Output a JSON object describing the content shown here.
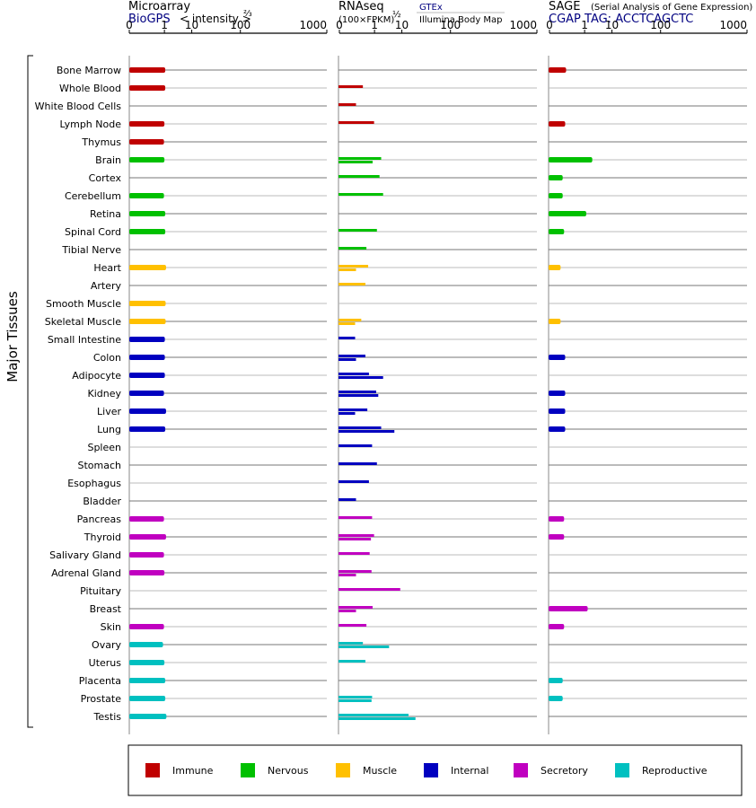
{
  "panels": {
    "microarray": {
      "title": "Microarray",
      "source": "BioGPS",
      "units": "< intensity >",
      "units_exp": "⅔"
    },
    "rnaseq": {
      "title": "RNAseq",
      "units": "(100×FPKM)",
      "units_exp": "½",
      "source1": "GTEx",
      "source2": "Illumina Body Map"
    },
    "sage": {
      "title": "SAGE",
      "subtitle": "(Serial Analysis of Gene Expression)",
      "source": "CGAP TAG: ACCTCAGCTC"
    }
  },
  "axis_ticks": [
    "0",
    "1",
    "10",
    "100",
    "1000"
  ],
  "y_group_label": "Major Tissues",
  "colors": {
    "Immune": "#c00000",
    "Nervous": "#00c000",
    "Muscle": "#ffc000",
    "Internal": "#0000c0",
    "Secretory": "#c000c0",
    "Reproductive": "#00c0c0"
  },
  "legend": [
    "Immune",
    "Nervous",
    "Muscle",
    "Internal",
    "Secretory",
    "Reproductive"
  ],
  "chart_data": [
    {
      "type": "bar",
      "title": "Microarray",
      "xlabel": "< intensity >⅔",
      "xlim": [
        0,
        1000
      ],
      "categories": [
        "Bone Marrow",
        "Whole Blood",
        "White Blood Cells",
        "Lymph Node",
        "Thymus",
        "Brain",
        "Cortex",
        "Cerebellum",
        "Retina",
        "Spinal Cord",
        "Tibial Nerve",
        "Heart",
        "Artery",
        "Smooth Muscle",
        "Skeletal Muscle",
        "Small Intestine",
        "Colon",
        "Adipocyte",
        "Kidney",
        "Liver",
        "Lung",
        "Spleen",
        "Stomach",
        "Esophagus",
        "Bladder",
        "Pancreas",
        "Thyroid",
        "Salivary Gland",
        "Adrenal Gland",
        "Pituitary",
        "Breast",
        "Skin",
        "Ovary",
        "Uterus",
        "Placenta",
        "Prostate",
        "Testis"
      ],
      "groups": [
        "Immune",
        "Immune",
        "Immune",
        "Immune",
        "Immune",
        "Nervous",
        "Nervous",
        "Nervous",
        "Nervous",
        "Nervous",
        "Nervous",
        "Muscle",
        "Muscle",
        "Muscle",
        "Muscle",
        "Internal",
        "Internal",
        "Internal",
        "Internal",
        "Internal",
        "Internal",
        "Internal",
        "Internal",
        "Internal",
        "Internal",
        "Secretory",
        "Secretory",
        "Secretory",
        "Secretory",
        "Secretory",
        "Secretory",
        "Secretory",
        "Reproductive",
        "Reproductive",
        "Reproductive",
        "Reproductive",
        "Reproductive"
      ],
      "values": [
        1.1,
        1.1,
        null,
        1.0,
        0.95,
        1.0,
        null,
        0.95,
        1.1,
        1.1,
        null,
        1.2,
        null,
        1.15,
        1.15,
        1.05,
        1.05,
        1.05,
        0.95,
        1.2,
        1.1,
        null,
        null,
        null,
        null,
        0.95,
        1.2,
        0.95,
        1.0,
        null,
        null,
        0.95,
        0.85,
        1.0,
        1.1,
        1.1,
        1.25
      ]
    },
    {
      "type": "bar",
      "title": "RNAseq",
      "xlabel": "(100×FPKM)½",
      "xlim": [
        0,
        1000
      ],
      "series": [
        {
          "name": "GTEx",
          "values": [
            null,
            0.2,
            0.05,
            0.95,
            null,
            2.0,
            1.7,
            2.4,
            null,
            1.3,
            0.35,
            0.45,
            0.3,
            null,
            0.15,
            0.04,
            0.3,
            0.5,
            1.2,
            0.4,
            2.0,
            0.75,
            1.3,
            0.5,
            0.05,
            0.75,
            0.95,
            0.55,
            0.7,
            9.0,
            0.8,
            0.35,
            0.2,
            0.3,
            null,
            0.75,
            15.0
          ]
        },
        {
          "name": "Illumina Body Map",
          "values": [
            null,
            null,
            null,
            null,
            null,
            0.8,
            null,
            null,
            null,
            null,
            null,
            0.05,
            null,
            null,
            0.04,
            null,
            0.05,
            2.4,
            1.5,
            0.04,
            6.0,
            null,
            null,
            null,
            null,
            null,
            0.65,
            null,
            0.05,
            null,
            0.05,
            null,
            4.0,
            null,
            null,
            0.7,
            22.0
          ]
        }
      ]
    },
    {
      "type": "bar",
      "title": "SAGE",
      "xlabel": "CGAP TAG: ACCTCAGCTC",
      "xlim": [
        0,
        1000
      ],
      "categories_ref": "same as Microarray",
      "values": [
        0.05,
        null,
        null,
        0.04,
        null,
        2.2,
        0.02,
        0.02,
        1.2,
        0.03,
        null,
        0.01,
        null,
        null,
        0.01,
        null,
        0.04,
        null,
        0.04,
        0.04,
        0.04,
        null,
        null,
        null,
        null,
        0.03,
        0.03,
        null,
        null,
        null,
        1.4,
        0.03,
        null,
        null,
        0.02,
        0.02,
        null
      ]
    }
  ]
}
